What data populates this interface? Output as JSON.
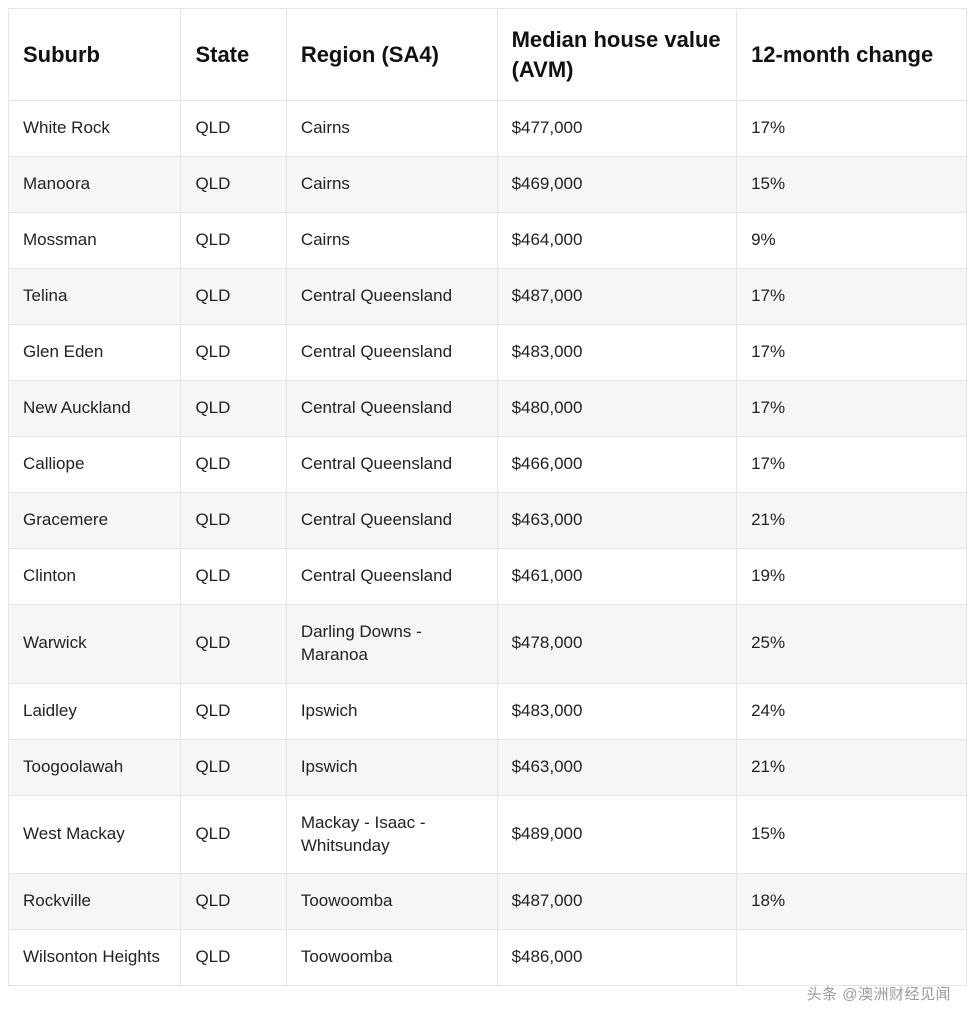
{
  "table": {
    "columns": [
      {
        "key": "suburb",
        "label": "Suburb"
      },
      {
        "key": "state",
        "label": "State"
      },
      {
        "key": "region",
        "label": "Region (SA4)"
      },
      {
        "key": "value",
        "label": "Median house value (AVM)"
      },
      {
        "key": "change",
        "label": "12-month change"
      }
    ],
    "rows": [
      {
        "suburb": "White Rock",
        "state": "QLD",
        "region": "Cairns",
        "value": "$477,000",
        "change": "17%"
      },
      {
        "suburb": "Manoora",
        "state": "QLD",
        "region": "Cairns",
        "value": "$469,000",
        "change": "15%"
      },
      {
        "suburb": "Mossman",
        "state": "QLD",
        "region": "Cairns",
        "value": "$464,000",
        "change": "9%"
      },
      {
        "suburb": "Telina",
        "state": "QLD",
        "region": "Central Queensland",
        "value": "$487,000",
        "change": "17%"
      },
      {
        "suburb": "Glen Eden",
        "state": "QLD",
        "region": "Central Queensland",
        "value": "$483,000",
        "change": "17%"
      },
      {
        "suburb": "New Auckland",
        "state": "QLD",
        "region": "Central Queensland",
        "value": "$480,000",
        "change": "17%"
      },
      {
        "suburb": "Calliope",
        "state": "QLD",
        "region": "Central Queensland",
        "value": "$466,000",
        "change": "17%"
      },
      {
        "suburb": "Gracemere",
        "state": "QLD",
        "region": "Central Queensland",
        "value": "$463,000",
        "change": "21%"
      },
      {
        "suburb": "Clinton",
        "state": "QLD",
        "region": "Central Queensland",
        "value": "$461,000",
        "change": "19%"
      },
      {
        "suburb": "Warwick",
        "state": "QLD",
        "region": "Darling Downs - Maranoa",
        "value": "$478,000",
        "change": "25%"
      },
      {
        "suburb": "Laidley",
        "state": "QLD",
        "region": "Ipswich",
        "value": "$483,000",
        "change": "24%"
      },
      {
        "suburb": "Toogoolawah",
        "state": "QLD",
        "region": "Ipswich",
        "value": "$463,000",
        "change": "21%"
      },
      {
        "suburb": "West Mackay",
        "state": "QLD",
        "region": "Mackay - Isaac - Whitsunday",
        "value": "$489,000",
        "change": "15%"
      },
      {
        "suburb": "Rockville",
        "state": "QLD",
        "region": "Toowoomba",
        "value": "$487,000",
        "change": "18%"
      },
      {
        "suburb": "Wilsonton Heights",
        "state": "QLD",
        "region": "Toowoomba",
        "value": "$486,000",
        "change": ""
      }
    ],
    "style": {
      "header_fontsize_pt": 17,
      "header_fontweight": 700,
      "cell_fontsize_pt": 13,
      "font_family": "-apple-system / Helvetica Neue",
      "border_color": "#e5e5e5",
      "row_alt_bg": "#f6f6f6",
      "row_bg": "#ffffff",
      "text_color": "#222222",
      "header_text_color": "#111111",
      "column_widths_pct": [
        18,
        11,
        22,
        25,
        24
      ],
      "column_align": [
        "left",
        "left",
        "left",
        "left",
        "left"
      ]
    }
  },
  "watermark": "头条 @澳洲财经见闻"
}
